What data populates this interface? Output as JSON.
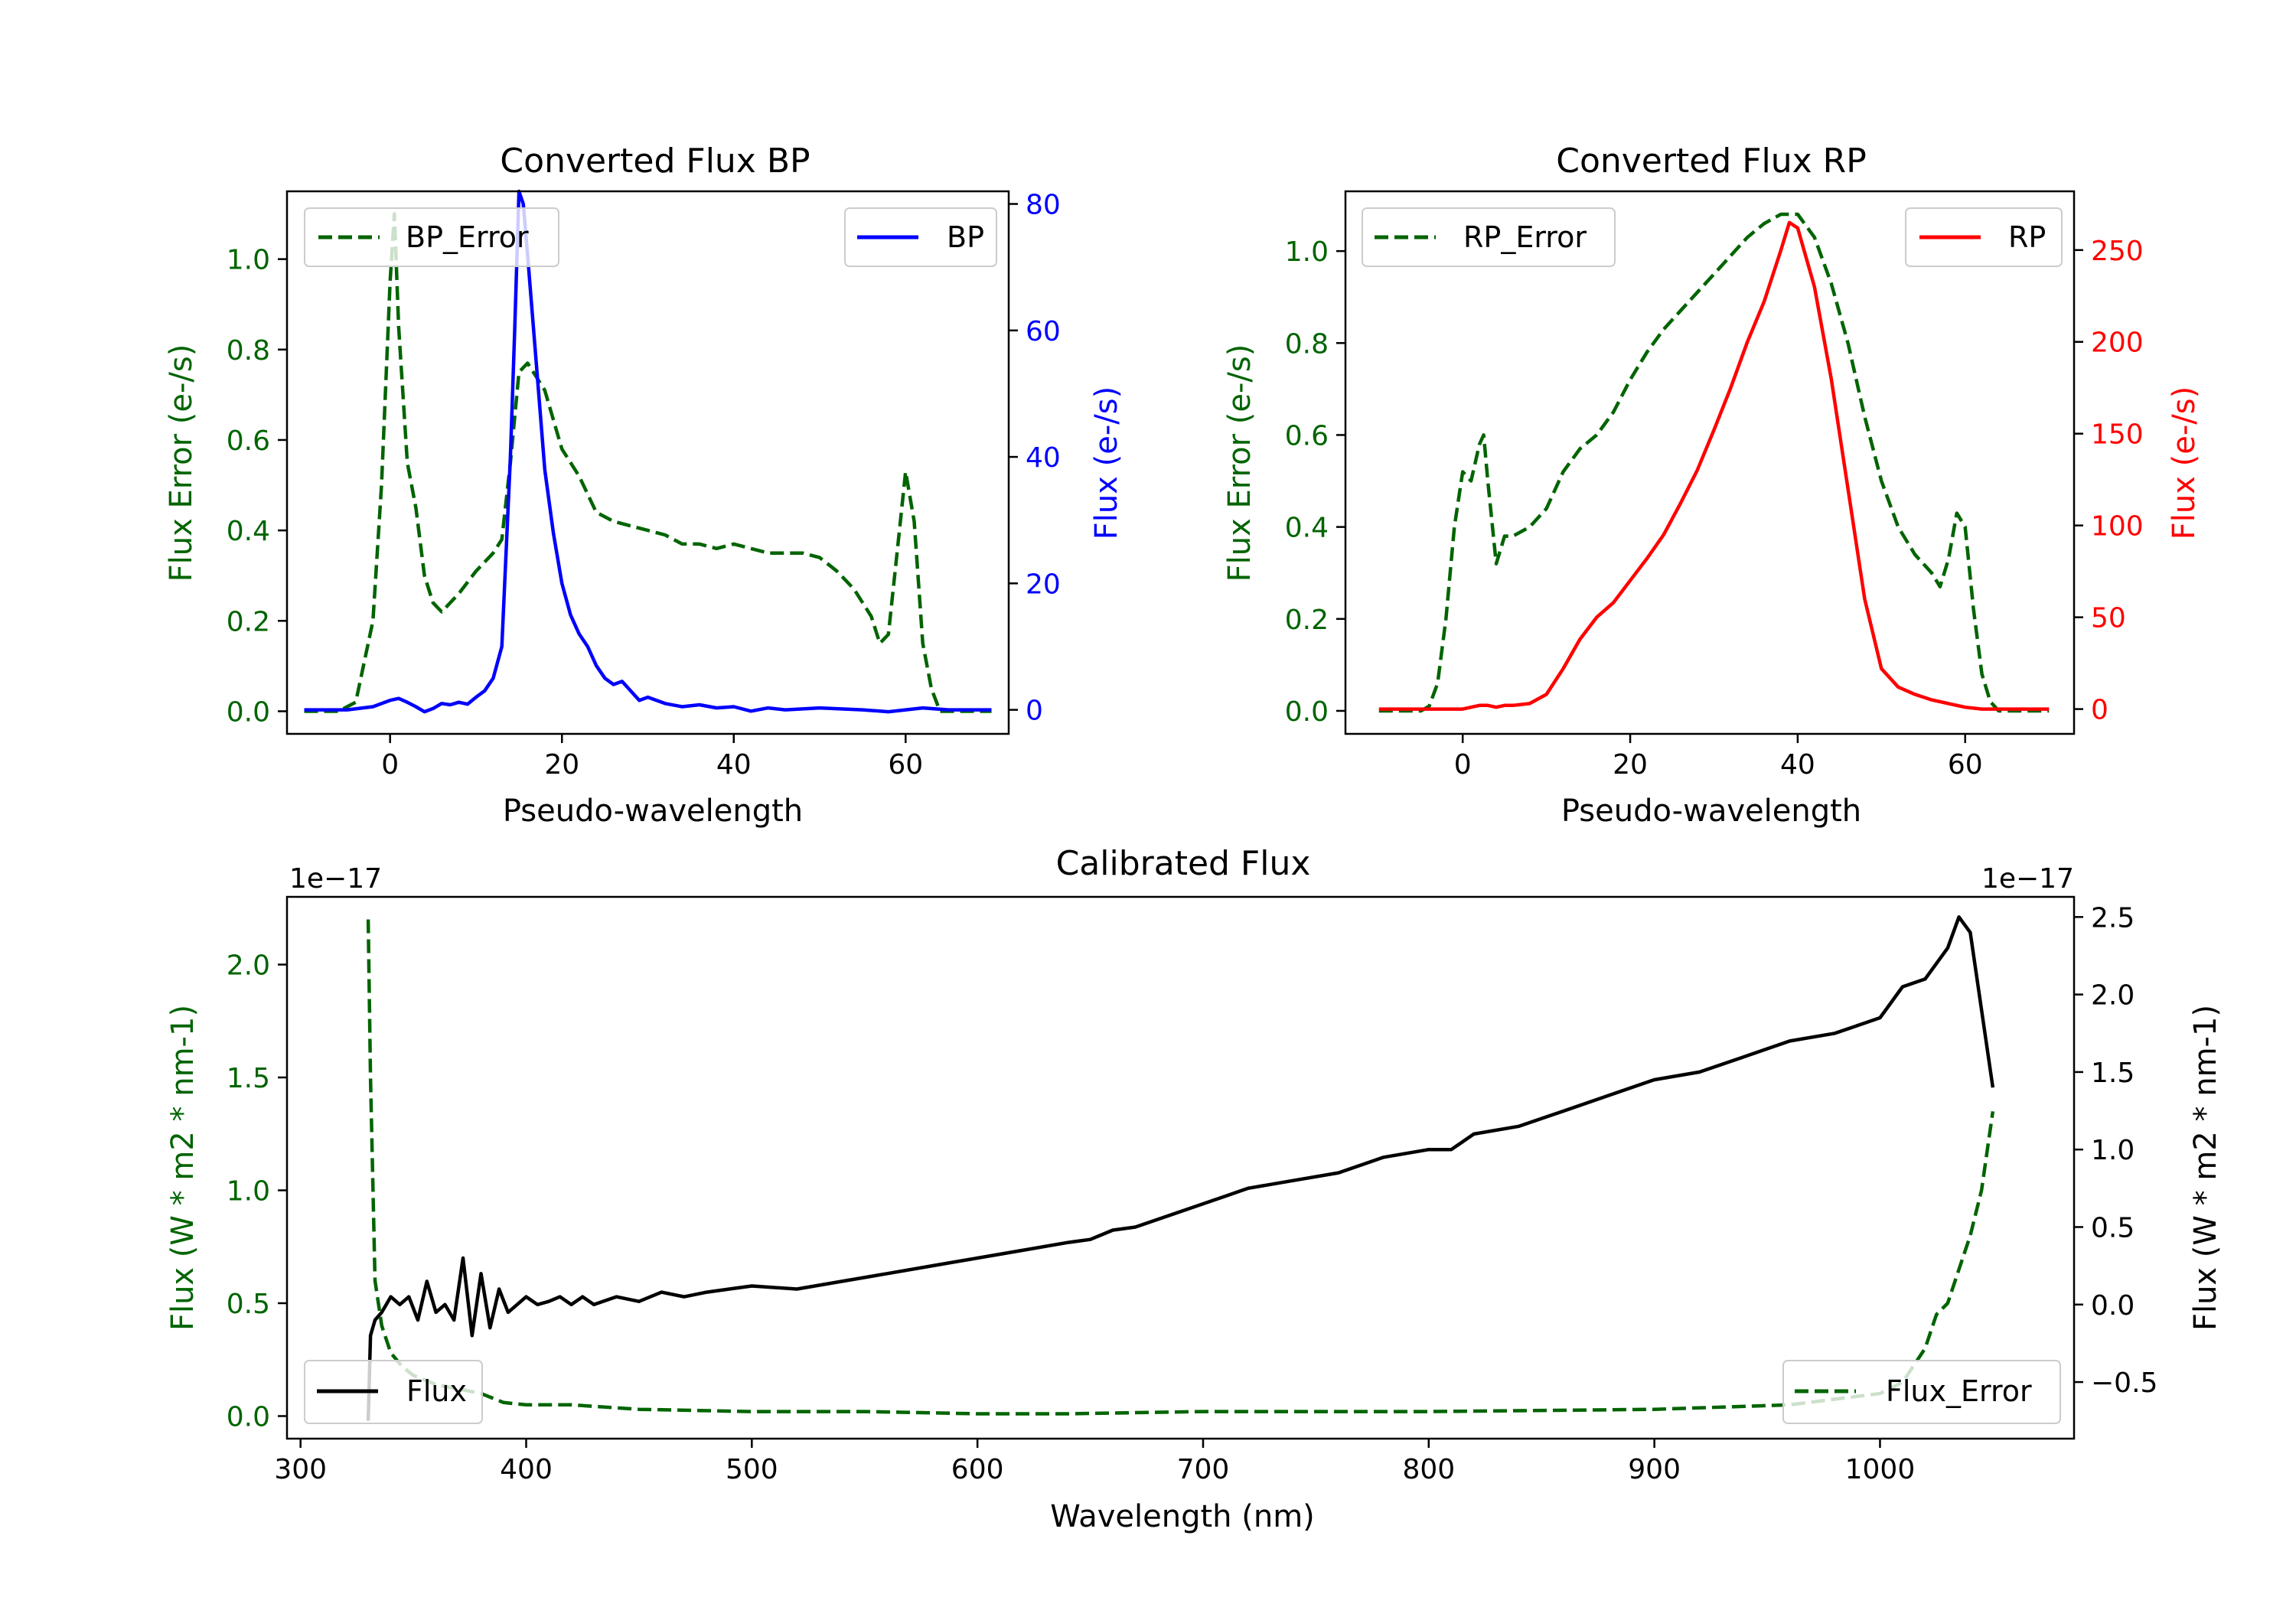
{
  "colors": {
    "error": "#006400",
    "bp": "#0000ff",
    "rp": "#ff0000",
    "flux": "#000000"
  },
  "chart_data": [
    {
      "id": "bp",
      "type": "line",
      "title": "Converted Flux BP",
      "xlabel": "Pseudo-wavelength",
      "ylabel_left": "Flux Error (e-/s)",
      "ylabel_right": "Flux (e-/s)",
      "xlim": [
        -12,
        72
      ],
      "ylim_left": [
        -0.05,
        1.15
      ],
      "ylim_right": [
        -3.8,
        82
      ],
      "xticks": [
        0,
        20,
        40,
        60
      ],
      "yticks_left": [
        0.0,
        0.2,
        0.4,
        0.6,
        0.8,
        1.0
      ],
      "yticks_right": [
        0,
        20,
        40,
        60,
        80
      ],
      "ytick_labels_left": [
        "0.0",
        "0.2",
        "0.4",
        "0.6",
        "0.8",
        "1.0"
      ],
      "ytick_labels_right": [
        "0",
        "20",
        "40",
        "60",
        "80"
      ],
      "legend_left": {
        "label": "BP_Error",
        "position": "upper-left"
      },
      "legend_right": {
        "label": "BP",
        "position": "upper-right"
      },
      "series": [
        {
          "name": "BP_Error",
          "axis": "left",
          "style": "dashed",
          "color_key": "error",
          "x": [
            -10,
            -6,
            -4,
            -2,
            -1,
            0,
            0.5,
            1,
            2,
            3,
            4,
            5,
            6,
            8,
            10,
            12,
            13,
            14,
            15,
            16,
            17,
            18,
            20,
            22,
            24,
            26,
            28,
            30,
            32,
            34,
            36,
            38,
            40,
            42,
            44,
            46,
            48,
            50,
            52,
            54,
            56,
            57,
            58,
            59,
            60,
            61,
            62,
            63,
            64,
            66,
            70
          ],
          "y": [
            0.0,
            0.0,
            0.02,
            0.2,
            0.5,
            0.95,
            1.1,
            0.85,
            0.55,
            0.45,
            0.3,
            0.24,
            0.22,
            0.26,
            0.31,
            0.35,
            0.38,
            0.55,
            0.75,
            0.77,
            0.74,
            0.71,
            0.58,
            0.52,
            0.44,
            0.42,
            0.41,
            0.4,
            0.39,
            0.37,
            0.37,
            0.36,
            0.37,
            0.36,
            0.35,
            0.35,
            0.35,
            0.34,
            0.31,
            0.27,
            0.21,
            0.15,
            0.17,
            0.35,
            0.53,
            0.42,
            0.15,
            0.05,
            0.0,
            0.0,
            0.0
          ]
        },
        {
          "name": "BP",
          "axis": "right",
          "style": "solid",
          "color_key": "bp",
          "x": [
            -10,
            -5,
            -2,
            0,
            1,
            2,
            3,
            4,
            5,
            6,
            7,
            8,
            9,
            10,
            11,
            12,
            13,
            14,
            14.5,
            15,
            15.5,
            16,
            17,
            18,
            19,
            20,
            21,
            22,
            23,
            24,
            25,
            26,
            27,
            28,
            29,
            30,
            32,
            34,
            36,
            38,
            40,
            42,
            44,
            46,
            50,
            55,
            58,
            60,
            62,
            65,
            70
          ],
          "y": [
            0,
            0,
            0.5,
            1.5,
            1.8,
            1.2,
            0.5,
            -0.3,
            0.2,
            1.0,
            0.8,
            1.2,
            0.9,
            2.0,
            3.0,
            5.0,
            10.0,
            40.0,
            60.0,
            82.0,
            80.0,
            72.0,
            55.0,
            38.0,
            28.0,
            20.0,
            15.0,
            12.0,
            10.0,
            7.0,
            5.0,
            4.0,
            4.5,
            3.0,
            1.5,
            2.0,
            1.0,
            0.5,
            0.8,
            0.3,
            0.5,
            -0.2,
            0.3,
            0.0,
            0.3,
            0.0,
            -0.3,
            0.0,
            0.3,
            0.0,
            0.0
          ]
        }
      ]
    },
    {
      "id": "rp",
      "type": "line",
      "title": "Converted Flux RP",
      "xlabel": "Pseudo-wavelength",
      "ylabel_left": "Flux Error (e-/s)",
      "ylabel_right": "Flux (e-/s)",
      "xlim": [
        -14,
        73
      ],
      "ylim_left": [
        -0.05,
        1.13
      ],
      "ylim_right": [
        -13.5,
        282
      ],
      "xticks": [
        0,
        20,
        40,
        60
      ],
      "yticks_left": [
        0.0,
        0.2,
        0.4,
        0.6,
        0.8,
        1.0
      ],
      "yticks_right": [
        0,
        50,
        100,
        150,
        200,
        250
      ],
      "ytick_labels_left": [
        "0.0",
        "0.2",
        "0.4",
        "0.6",
        "0.8",
        "1.0"
      ],
      "ytick_labels_right": [
        "0",
        "50",
        "100",
        "150",
        "200",
        "250"
      ],
      "legend_left": {
        "label": "RP_Error",
        "position": "upper-left"
      },
      "legend_right": {
        "label": "RP",
        "position": "upper-right"
      },
      "series": [
        {
          "name": "RP_Error",
          "axis": "left",
          "style": "dashed",
          "color_key": "error",
          "x": [
            -10,
            -5,
            -4,
            -3,
            -2,
            -1,
            0,
            1,
            2,
            2.5,
            3,
            4,
            5,
            6,
            8,
            10,
            12,
            14,
            16,
            18,
            20,
            22,
            24,
            26,
            28,
            30,
            32,
            34,
            36,
            38,
            40,
            42,
            44,
            46,
            48,
            50,
            52,
            54,
            56,
            57,
            58,
            59,
            60,
            61,
            62,
            63,
            64,
            66,
            70
          ],
          "y": [
            0.0,
            0.0,
            0.01,
            0.06,
            0.2,
            0.4,
            0.52,
            0.5,
            0.58,
            0.6,
            0.5,
            0.32,
            0.38,
            0.38,
            0.4,
            0.44,
            0.52,
            0.57,
            0.6,
            0.65,
            0.72,
            0.78,
            0.83,
            0.87,
            0.91,
            0.95,
            0.99,
            1.03,
            1.06,
            1.08,
            1.08,
            1.03,
            0.93,
            0.8,
            0.64,
            0.5,
            0.4,
            0.34,
            0.3,
            0.27,
            0.33,
            0.43,
            0.4,
            0.22,
            0.08,
            0.02,
            0.0,
            0.0,
            0.0
          ]
        },
        {
          "name": "RP",
          "axis": "right",
          "style": "solid",
          "color_key": "rp",
          "x": [
            -10,
            -5,
            0,
            1,
            2,
            3,
            4,
            5,
            6,
            8,
            10,
            12,
            14,
            16,
            18,
            20,
            22,
            24,
            26,
            28,
            30,
            32,
            34,
            36,
            38,
            39,
            40,
            42,
            44,
            46,
            48,
            50,
            52,
            54,
            56,
            58,
            60,
            62,
            65,
            70
          ],
          "y": [
            0,
            0,
            0,
            1,
            2,
            2,
            1,
            2,
            2,
            3,
            8,
            22,
            38,
            50,
            58,
            70,
            82,
            95,
            112,
            130,
            152,
            175,
            200,
            222,
            250,
            265,
            262,
            230,
            180,
            120,
            60,
            22,
            12,
            8,
            5,
            3,
            1,
            0,
            0,
            0
          ]
        }
      ]
    },
    {
      "id": "calibrated",
      "type": "line",
      "title": "Calibrated Flux",
      "xlabel": "Wavelength (nm)",
      "ylabel_left": "Flux (W * m2 * nm-1)",
      "ylabel_right": "Flux (W * m2 * nm-1)",
      "scale_left": "1e−17",
      "scale_right": "1e−17",
      "xlim": [
        294,
        1086
      ],
      "ylim_left": [
        -0.1,
        2.3
      ],
      "ylim_right": [
        -0.865,
        2.63
      ],
      "xticks": [
        300,
        400,
        500,
        600,
        700,
        800,
        900,
        1000
      ],
      "yticks_left": [
        0.0,
        0.5,
        1.0,
        1.5,
        2.0
      ],
      "yticks_right": [
        -0.5,
        0.0,
        0.5,
        1.0,
        1.5,
        2.0,
        2.5
      ],
      "ytick_labels_left": [
        "0.0",
        "0.5",
        "1.0",
        "1.5",
        "2.0"
      ],
      "ytick_labels_right": [
        "−0.5",
        "0.0",
        "0.5",
        "1.0",
        "1.5",
        "2.0",
        "2.5"
      ],
      "legend_left": {
        "label": "Flux",
        "position": "lower-left"
      },
      "legend_right": {
        "label": "Flux_Error",
        "position": "lower-right"
      },
      "series": [
        {
          "name": "Flux",
          "axis": "right",
          "style": "solid",
          "color_key": "flux",
          "x": [
            330,
            331,
            333,
            336,
            340,
            344,
            348,
            352,
            356,
            360,
            364,
            368,
            372,
            376,
            380,
            384,
            388,
            392,
            396,
            400,
            405,
            410,
            415,
            420,
            425,
            430,
            440,
            450,
            460,
            470,
            480,
            490,
            500,
            520,
            540,
            560,
            580,
            600,
            620,
            640,
            650,
            660,
            670,
            680,
            690,
            700,
            710,
            720,
            740,
            760,
            780,
            800,
            810,
            820,
            840,
            860,
            880,
            900,
            920,
            940,
            960,
            980,
            1000,
            1010,
            1020,
            1030,
            1035,
            1040,
            1050
          ],
          "y": [
            -0.75,
            -0.2,
            -0.1,
            -0.05,
            0.05,
            0.0,
            0.05,
            -0.1,
            0.15,
            -0.05,
            0.0,
            -0.1,
            0.3,
            -0.2,
            0.2,
            -0.15,
            0.1,
            -0.05,
            0.0,
            0.05,
            0.0,
            0.02,
            0.05,
            0.0,
            0.05,
            0.0,
            0.05,
            0.02,
            0.08,
            0.05,
            0.08,
            0.1,
            0.12,
            0.1,
            0.15,
            0.2,
            0.25,
            0.3,
            0.35,
            0.4,
            0.42,
            0.48,
            0.5,
            0.55,
            0.6,
            0.65,
            0.7,
            0.75,
            0.8,
            0.85,
            0.95,
            1.0,
            1.0,
            1.1,
            1.15,
            1.25,
            1.35,
            1.45,
            1.5,
            1.6,
            1.7,
            1.75,
            1.85,
            2.05,
            2.1,
            2.3,
            2.5,
            2.4,
            1.4
          ]
        },
        {
          "name": "Flux_Error",
          "axis": "left",
          "style": "dashed",
          "color_key": "error",
          "x": [
            330,
            331,
            333,
            336,
            340,
            345,
            350,
            360,
            370,
            380,
            390,
            400,
            420,
            450,
            500,
            550,
            600,
            640,
            700,
            800,
            900,
            960,
            1000,
            1010,
            1020,
            1025,
            1030,
            1035,
            1040,
            1045,
            1050
          ],
          "y": [
            2.2,
            1.5,
            0.6,
            0.4,
            0.28,
            0.22,
            0.18,
            0.14,
            0.12,
            0.1,
            0.06,
            0.05,
            0.05,
            0.03,
            0.02,
            0.02,
            0.01,
            0.01,
            0.02,
            0.02,
            0.03,
            0.05,
            0.1,
            0.15,
            0.3,
            0.45,
            0.5,
            0.65,
            0.8,
            1.0,
            1.35
          ]
        }
      ]
    }
  ]
}
